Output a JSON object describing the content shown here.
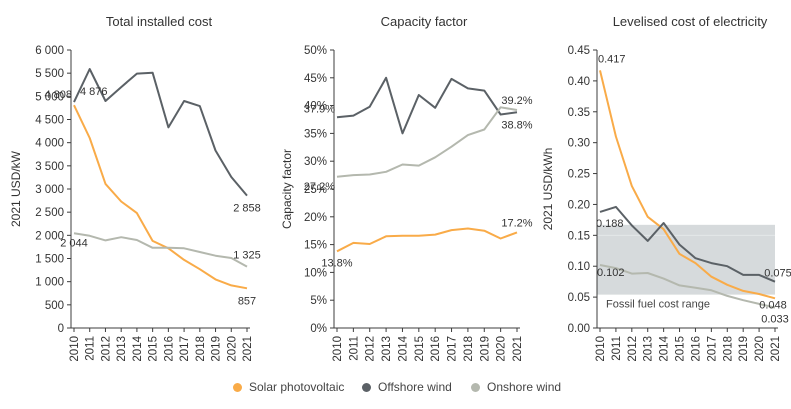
{
  "colors": {
    "solar": "#f9ab48",
    "offshore": "#5b6166",
    "onshore": "#b4b8ae",
    "band": "#cfd3d6",
    "axis": "#3c3c3c",
    "text": "#333333"
  },
  "legend": {
    "solar": "Solar photovoltaic",
    "offshore": "Offshore wind",
    "onshore": "Onshore wind"
  },
  "chart_data": [
    {
      "type": "line",
      "title": "Total installed cost",
      "ylabel": "2021 USD/kW",
      "xlabel": "",
      "ylim": [
        0,
        6000
      ],
      "yticks": [
        "0",
        "500",
        "1 000",
        "1 500",
        "2 000",
        "2 500",
        "3 000",
        "3 500",
        "4 000",
        "4 500",
        "5 000",
        "5 500",
        "6 000"
      ],
      "x": [
        "2010",
        "2011",
        "2012",
        "2013",
        "2014",
        "2015",
        "2016",
        "2017",
        "2018",
        "2019",
        "2020",
        "2021"
      ],
      "grid": false,
      "series": [
        {
          "key": "solar",
          "values": [
            4808,
            4100,
            3110,
            2730,
            2480,
            1880,
            1720,
            1470,
            1270,
            1050,
            920,
            857
          ]
        },
        {
          "key": "offshore",
          "values": [
            4876,
            5590,
            4900,
            5200,
            5490,
            5510,
            4330,
            4900,
            4790,
            3830,
            3260,
            2858
          ]
        },
        {
          "key": "onshore",
          "values": [
            2044,
            1990,
            1890,
            1960,
            1900,
            1730,
            1730,
            1720,
            1640,
            1560,
            1510,
            1325
          ]
        }
      ],
      "annotations": [
        {
          "text": "4 808",
          "series": "solar",
          "index": 0
        },
        {
          "text": "4 876",
          "series": "offshore",
          "index": 0
        },
        {
          "text": "2 044",
          "series": "onshore",
          "index": 0
        },
        {
          "text": "857",
          "series": "solar",
          "index": 11
        },
        {
          "text": "2 858",
          "series": "offshore",
          "index": 11
        },
        {
          "text": "1 325",
          "series": "onshore",
          "index": 11
        }
      ]
    },
    {
      "type": "line",
      "title": "Capacity factor",
      "ylabel": "Capacity factor",
      "xlabel": "",
      "ylim": [
        0,
        50
      ],
      "yticks": [
        "0%",
        "5%",
        "10%",
        "15%",
        "20%",
        "25%",
        "30%",
        "35%",
        "40%",
        "45%",
        "50%"
      ],
      "x": [
        "2010",
        "2011",
        "2012",
        "2013",
        "2014",
        "2015",
        "2016",
        "2017",
        "2018",
        "2019",
        "2020",
        "2021"
      ],
      "grid": false,
      "series": [
        {
          "key": "solar",
          "values": [
            13.8,
            15.3,
            15.1,
            16.5,
            16.6,
            16.6,
            16.8,
            17.6,
            17.9,
            17.5,
            16.1,
            17.2
          ]
        },
        {
          "key": "offshore",
          "values": [
            37.9,
            38.2,
            39.8,
            45.0,
            35.0,
            41.9,
            39.6,
            44.8,
            43.1,
            42.7,
            38.4,
            38.8
          ]
        },
        {
          "key": "onshore",
          "values": [
            27.2,
            27.5,
            27.6,
            28.1,
            29.4,
            29.2,
            30.7,
            32.6,
            34.7,
            35.7,
            39.7,
            39.2
          ]
        }
      ],
      "annotations": [
        {
          "text": "37.9%",
          "series": "offshore",
          "index": 0
        },
        {
          "text": "27.2%",
          "series": "onshore",
          "index": 0
        },
        {
          "text": "13.8%",
          "series": "solar",
          "index": 0
        },
        {
          "text": "39.2%",
          "series": "onshore",
          "index": 11
        },
        {
          "text": "38.8%",
          "series": "offshore",
          "index": 11
        },
        {
          "text": "17.2%",
          "series": "solar",
          "index": 11
        }
      ]
    },
    {
      "type": "line",
      "title": "Levelised cost of electricity",
      "ylabel": "2021 USD/kWh",
      "xlabel": "",
      "ylim": [
        0,
        0.45
      ],
      "yticks": [
        "0.00",
        "0.05",
        "0.10",
        "0.15",
        "0.20",
        "0.25",
        "0.30",
        "0.35",
        "0.40",
        "0.45"
      ],
      "x": [
        "2010",
        "2011",
        "2012",
        "2013",
        "2014",
        "2015",
        "2016",
        "2017",
        "2018",
        "2019",
        "2020",
        "2021"
      ],
      "grid": false,
      "band": {
        "label": "Fossil fuel cost range",
        "range": [
          0.054,
          0.167
        ]
      },
      "series": [
        {
          "key": "solar",
          "values": [
            0.417,
            0.31,
            0.23,
            0.18,
            0.16,
            0.12,
            0.105,
            0.083,
            0.07,
            0.06,
            0.055,
            0.048
          ]
        },
        {
          "key": "offshore",
          "values": [
            0.188,
            0.196,
            0.166,
            0.141,
            0.17,
            0.135,
            0.113,
            0.105,
            0.1,
            0.086,
            0.086,
            0.075
          ]
        },
        {
          "key": "onshore",
          "values": [
            0.102,
            0.097,
            0.088,
            0.089,
            0.08,
            0.069,
            0.065,
            0.061,
            0.052,
            0.045,
            0.039,
            0.033
          ]
        }
      ],
      "annotations": [
        {
          "text": "0.417",
          "series": "solar",
          "index": 0
        },
        {
          "text": "0.188",
          "series": "offshore",
          "index": 0
        },
        {
          "text": "0.102",
          "series": "onshore",
          "index": 0
        },
        {
          "text": "0.075",
          "series": "offshore",
          "index": 11
        },
        {
          "text": "0.048",
          "series": "solar",
          "index": 11
        },
        {
          "text": "0.033",
          "series": "onshore",
          "index": 11
        }
      ]
    }
  ]
}
